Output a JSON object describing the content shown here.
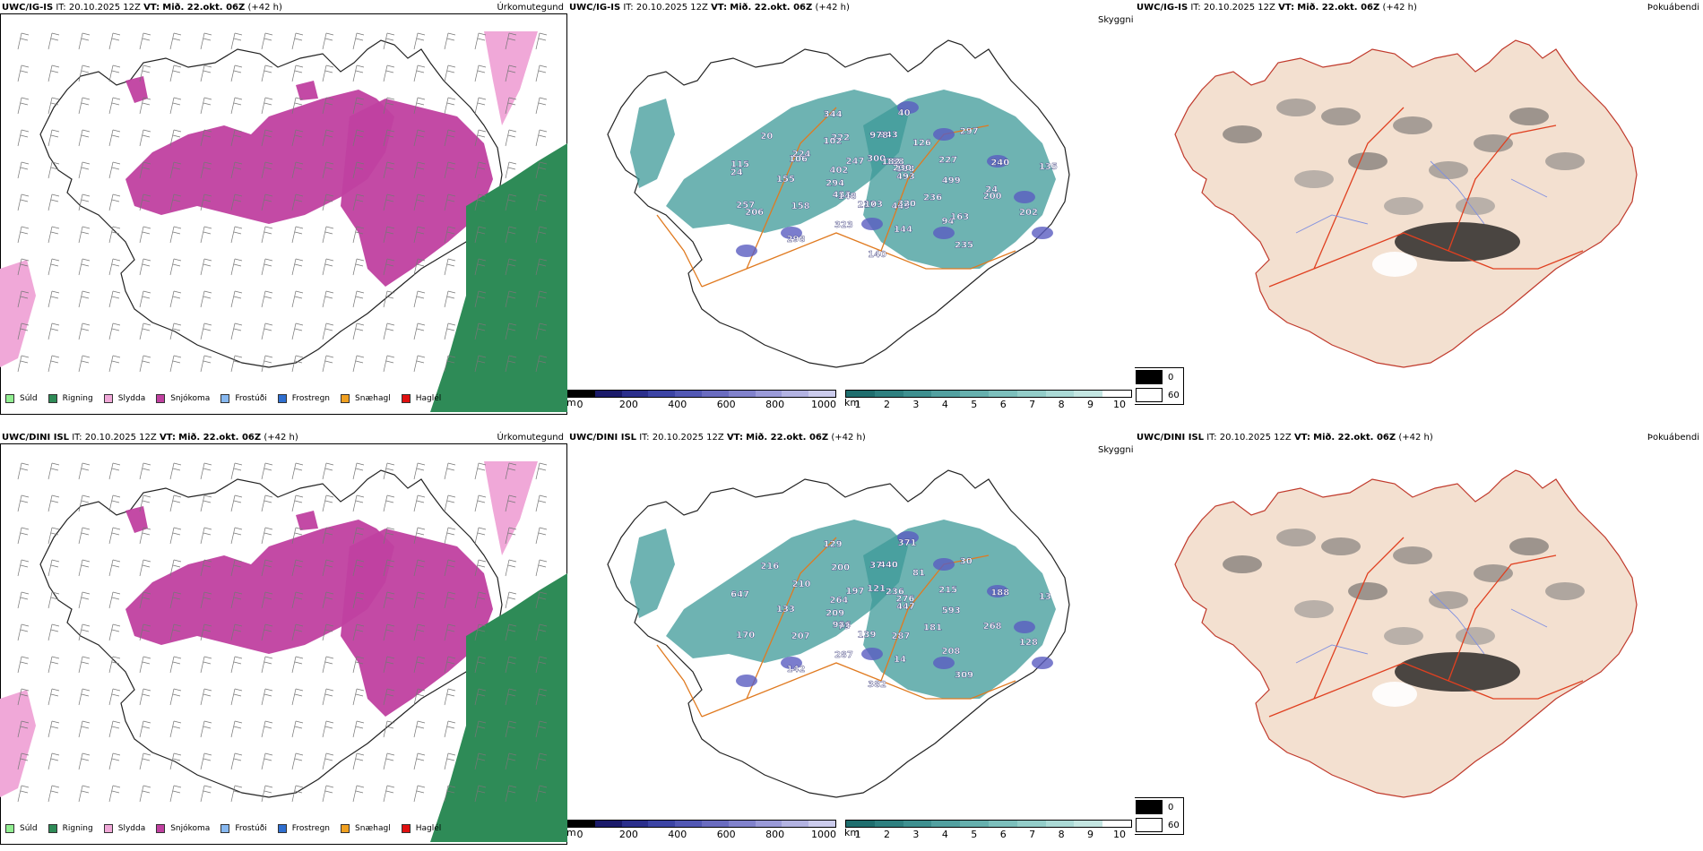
{
  "rows": [
    {
      "model": "UWC/IG-IS",
      "it_label": "IT:",
      "it_value": "20.10.2025 12Z",
      "vt_label": "VT:",
      "vt_value": "Mið. 22.okt. 06Z",
      "lead": "(+42 h)"
    },
    {
      "model": "UWC/DINI ISL",
      "it_label": "IT:",
      "it_value": "20.10.2025 12Z",
      "vt_label": "VT:",
      "vt_value": "Mið. 22.okt. 06Z",
      "lead": "(+42 h)"
    }
  ],
  "panels": {
    "precip_type": "Úrkomutegund",
    "visibility": "Skyggni",
    "fog": "Þokuábendi"
  },
  "precip_legend": [
    {
      "label": "Súld",
      "color": "#90ee90"
    },
    {
      "label": "Rigning",
      "color": "#2e8b57"
    },
    {
      "label": "Slydda",
      "color": "#f0a8d8"
    },
    {
      "label": "Snjókoma",
      "color": "#c040a0"
    },
    {
      "label": "Frostúði",
      "color": "#87b8f0"
    },
    {
      "label": "Frostregn",
      "color": "#2f6fd0"
    },
    {
      "label": "Snæhagl",
      "color": "#f0a020"
    },
    {
      "label": "Haglél",
      "color": "#e01010"
    }
  ],
  "ceiling_bar": {
    "unit": "m",
    "ticks": [
      "0",
      "200",
      "400",
      "600",
      "800",
      "1000"
    ],
    "colors": [
      "#000000",
      "#1a1a6a",
      "#2b2f8c",
      "#3c44a4",
      "#5258b4",
      "#6a6cc0",
      "#8182cc",
      "#9a9ad8",
      "#b3b3e2",
      "#cccced"
    ]
  },
  "vis_bar": {
    "unit": "km",
    "ticks": [
      "1",
      "2",
      "3",
      "4",
      "5",
      "6",
      "7",
      "8",
      "9",
      "10"
    ],
    "colors": [
      "#1f6e6e",
      "#2e8080",
      "#3e9090",
      "#52a0a0",
      "#66b0ae",
      "#7cbfbc",
      "#93cdc9",
      "#abdad6",
      "#c4e6e2",
      "#ffffff"
    ]
  },
  "fog_legend": {
    "low": "0",
    "high": "60"
  },
  "labels_top": [
    "493",
    "433",
    "943",
    "94",
    "115",
    "158",
    "237",
    "222",
    "200",
    "257",
    "188",
    "449",
    "224",
    "240",
    "298",
    "300",
    "236",
    "155",
    "297",
    "140",
    "247",
    "499",
    "158",
    "40",
    "235",
    "402",
    "227",
    "323",
    "344",
    "202",
    "294",
    "126",
    "144",
    "20",
    "135",
    "148",
    "978",
    "163",
    "24",
    "230",
    "103",
    "102",
    "24",
    "206",
    "182",
    "320",
    "106"
  ],
  "labels_bottom": [
    "447",
    "986",
    "440",
    "208",
    "647",
    "276",
    "139",
    "200",
    "268",
    "170",
    "236",
    "287",
    "210",
    "188",
    "142",
    "121",
    "181",
    "133",
    "30",
    "382",
    "197",
    "593",
    "207",
    "371",
    "309",
    "264",
    "215",
    "287",
    "129",
    "128",
    "209",
    "81",
    "14",
    "216",
    "13",
    "73",
    "37"
  ],
  "colors": {
    "snow": "#c040a0",
    "rain": "#2e8b57",
    "sleet": "#f0a8d8",
    "vis_teal": "#3e9a98",
    "ceiling": "#5a5cc0",
    "roads": "#e07a20",
    "land_fog": "#f3e0d0"
  }
}
